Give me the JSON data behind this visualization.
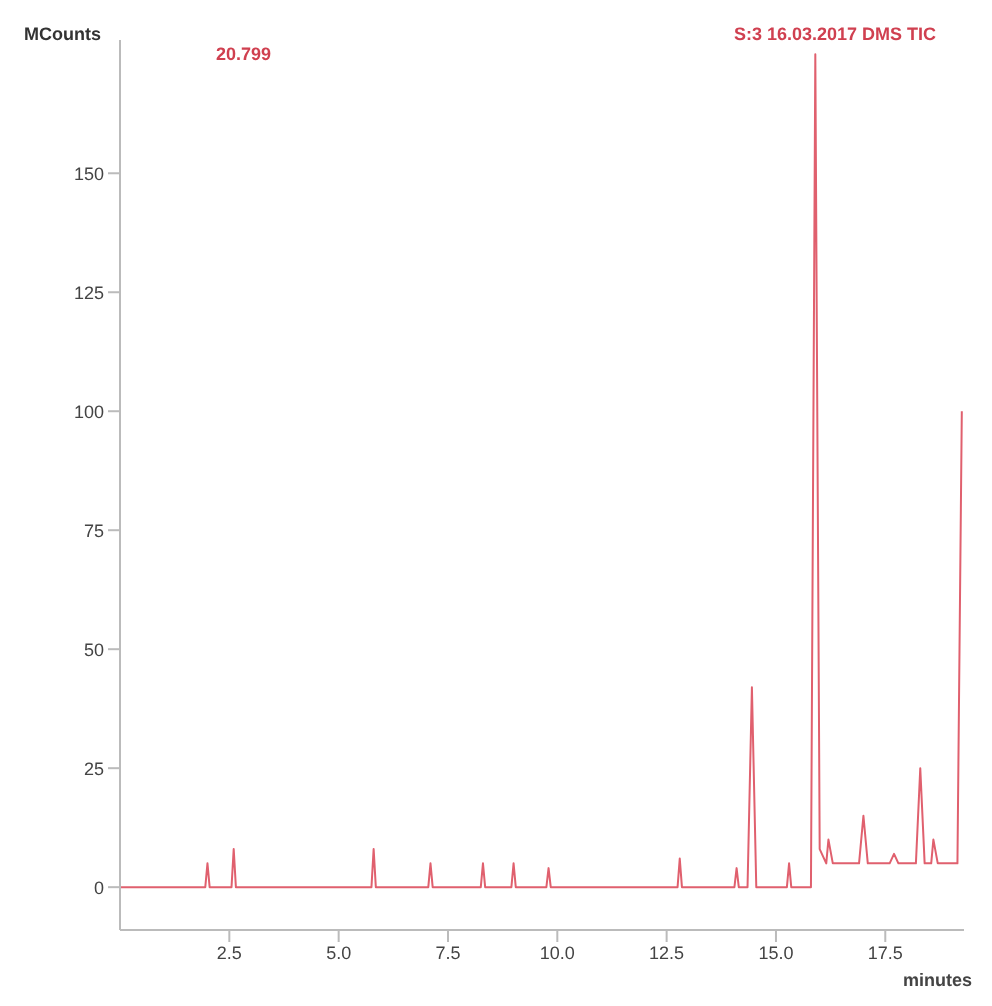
{
  "chart_data": {
    "type": "line",
    "title": "S:3 16.03.2017 DMS TIC",
    "ylabel": "MCounts",
    "xlabel": "minutes",
    "annotations": [
      "20.799"
    ],
    "x": [
      0,
      1.95,
      2.0,
      2.05,
      2.55,
      2.6,
      2.65,
      5.75,
      5.8,
      5.85,
      7.05,
      7.1,
      7.15,
      8.25,
      8.3,
      8.35,
      8.95,
      9.0,
      9.05,
      9.75,
      9.8,
      9.85,
      12.75,
      12.8,
      12.85,
      14.05,
      14.1,
      14.15,
      14.35,
      14.45,
      14.55,
      15.25,
      15.3,
      15.35,
      15.8,
      15.9,
      16.0,
      16.15,
      16.2,
      16.3,
      16.9,
      17.0,
      17.1,
      17.6,
      17.7,
      17.8,
      18.2,
      18.3,
      18.4,
      18.55,
      18.6,
      18.7,
      19.15,
      19.25
    ],
    "series": [
      {
        "color": "#e0606e",
        "values": [
          0,
          0,
          5,
          0,
          0,
          8,
          0,
          0,
          8,
          0,
          0,
          5,
          0,
          0,
          5,
          0,
          0,
          5,
          0,
          0,
          4,
          0,
          0,
          6,
          0,
          0,
          4,
          0,
          0,
          42,
          0,
          0,
          5,
          0,
          0,
          175,
          8,
          5,
          10,
          5,
          5,
          15,
          5,
          5,
          7,
          5,
          5,
          25,
          5,
          5,
          10,
          5,
          5,
          100
        ]
      }
    ],
    "xlim": [
      0,
      19.3
    ],
    "ylim": [
      -9,
      178
    ],
    "xticks": [
      2.5,
      {
        "value": 5,
        "label": "5.0"
      },
      7.5,
      {
        "value": 10,
        "label": "10.0"
      },
      12.5,
      {
        "value": 15,
        "label": "15.0"
      },
      17.5
    ],
    "yticks": [
      0,
      25,
      50,
      75,
      100,
      125,
      150
    ],
    "grid": false,
    "legend": false,
    "marker": "none",
    "line_style": "solid"
  }
}
